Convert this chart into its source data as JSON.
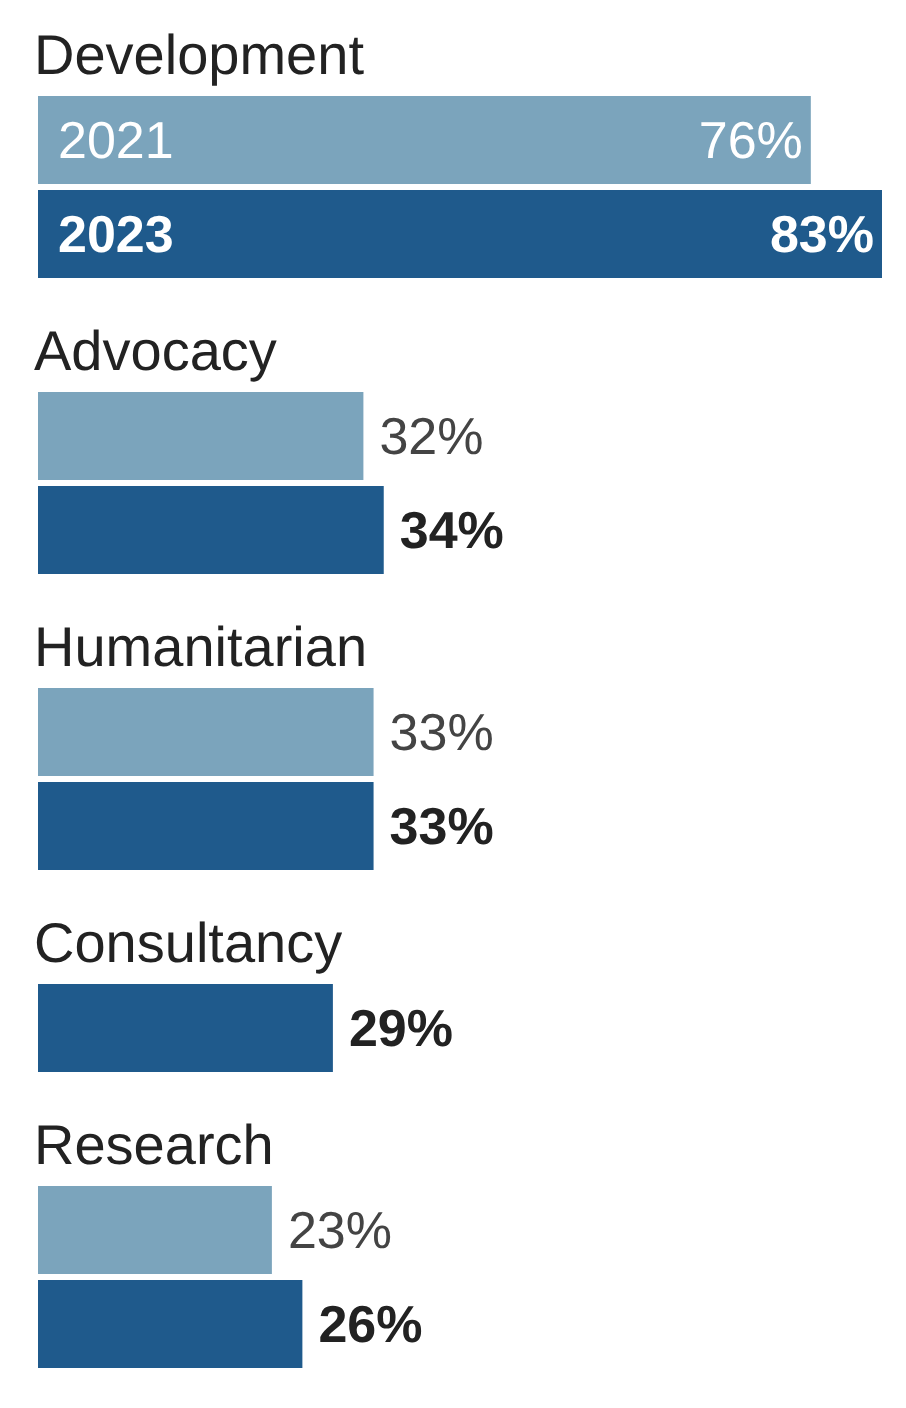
{
  "chart_data": {
    "type": "bar",
    "orientation": "horizontal",
    "categories": [
      "Development",
      "Advocacy",
      "Humanitarian",
      "Consultancy",
      "Research"
    ],
    "series": [
      {
        "name": "2021",
        "color": "#7ba4bc",
        "values": [
          76,
          32,
          33,
          null,
          23
        ],
        "value_labels": [
          "76%",
          "32%",
          "33%",
          null,
          "23%"
        ]
      },
      {
        "name": "2023",
        "color": "#1f5a8c",
        "values": [
          83,
          34,
          33,
          29,
          26
        ],
        "value_labels": [
          "83%",
          "34%",
          "33%",
          "29%",
          "26%"
        ]
      }
    ]
  }
}
